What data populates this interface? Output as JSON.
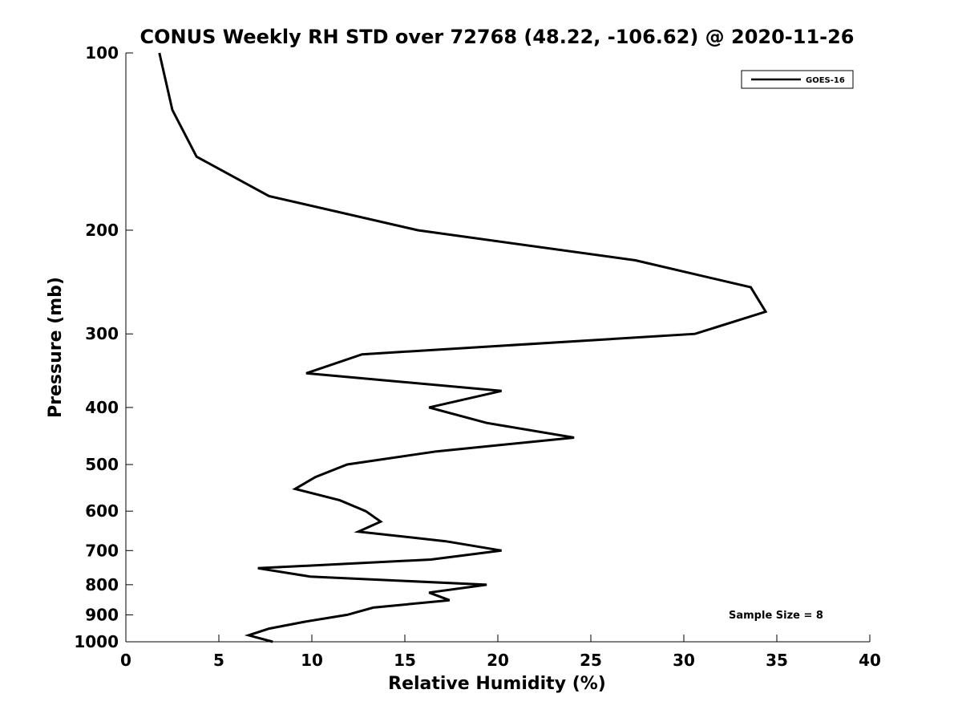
{
  "chart_data": {
    "type": "line",
    "title": "CONUS Weekly RH STD over 72768 (48.22, -106.62) @ 2020-11-26",
    "xlabel": "Relative Humidity (%)",
    "ylabel": "Pressure (mb)",
    "xlim": [
      0,
      40
    ],
    "ylim": [
      100,
      1000
    ],
    "yscale": "log",
    "y_reversed": true,
    "grid": false,
    "legend_position": "top-right",
    "x_ticks": [
      "0",
      "5",
      "10",
      "15",
      "20",
      "25",
      "30",
      "35",
      "40"
    ],
    "y_ticks": [
      "100",
      "200",
      "300",
      "400",
      "500",
      "600",
      "700",
      "800",
      "900",
      "1000"
    ],
    "annotation": "Sample Size = 8",
    "series": [
      {
        "name": "GOES-16",
        "color": "#000000",
        "points": [
          {
            "rh": 1.8,
            "p": 100
          },
          {
            "rh": 2.5,
            "p": 125
          },
          {
            "rh": 3.8,
            "p": 150
          },
          {
            "rh": 7.7,
            "p": 175
          },
          {
            "rh": 15.7,
            "p": 200
          },
          {
            "rh": 27.4,
            "p": 225
          },
          {
            "rh": 33.6,
            "p": 250
          },
          {
            "rh": 34.4,
            "p": 275
          },
          {
            "rh": 30.6,
            "p": 300
          },
          {
            "rh": 12.7,
            "p": 325
          },
          {
            "rh": 9.7,
            "p": 350
          },
          {
            "rh": 20.2,
            "p": 375
          },
          {
            "rh": 16.3,
            "p": 400
          },
          {
            "rh": 19.4,
            "p": 425
          },
          {
            "rh": 24.1,
            "p": 450
          },
          {
            "rh": 16.7,
            "p": 475
          },
          {
            "rh": 11.9,
            "p": 500
          },
          {
            "rh": 10.2,
            "p": 525
          },
          {
            "rh": 9.1,
            "p": 550
          },
          {
            "rh": 11.5,
            "p": 575
          },
          {
            "rh": 12.9,
            "p": 600
          },
          {
            "rh": 13.7,
            "p": 625
          },
          {
            "rh": 12.5,
            "p": 650
          },
          {
            "rh": 17.2,
            "p": 675
          },
          {
            "rh": 20.2,
            "p": 700
          },
          {
            "rh": 16.4,
            "p": 725
          },
          {
            "rh": 7.1,
            "p": 750
          },
          {
            "rh": 9.9,
            "p": 775
          },
          {
            "rh": 19.4,
            "p": 800
          },
          {
            "rh": 16.3,
            "p": 825
          },
          {
            "rh": 17.4,
            "p": 850
          },
          {
            "rh": 13.3,
            "p": 875
          },
          {
            "rh": 11.9,
            "p": 900
          },
          {
            "rh": 9.6,
            "p": 925
          },
          {
            "rh": 7.7,
            "p": 950
          },
          {
            "rh": 6.6,
            "p": 975
          },
          {
            "rh": 7.9,
            "p": 1000
          }
        ]
      }
    ]
  }
}
